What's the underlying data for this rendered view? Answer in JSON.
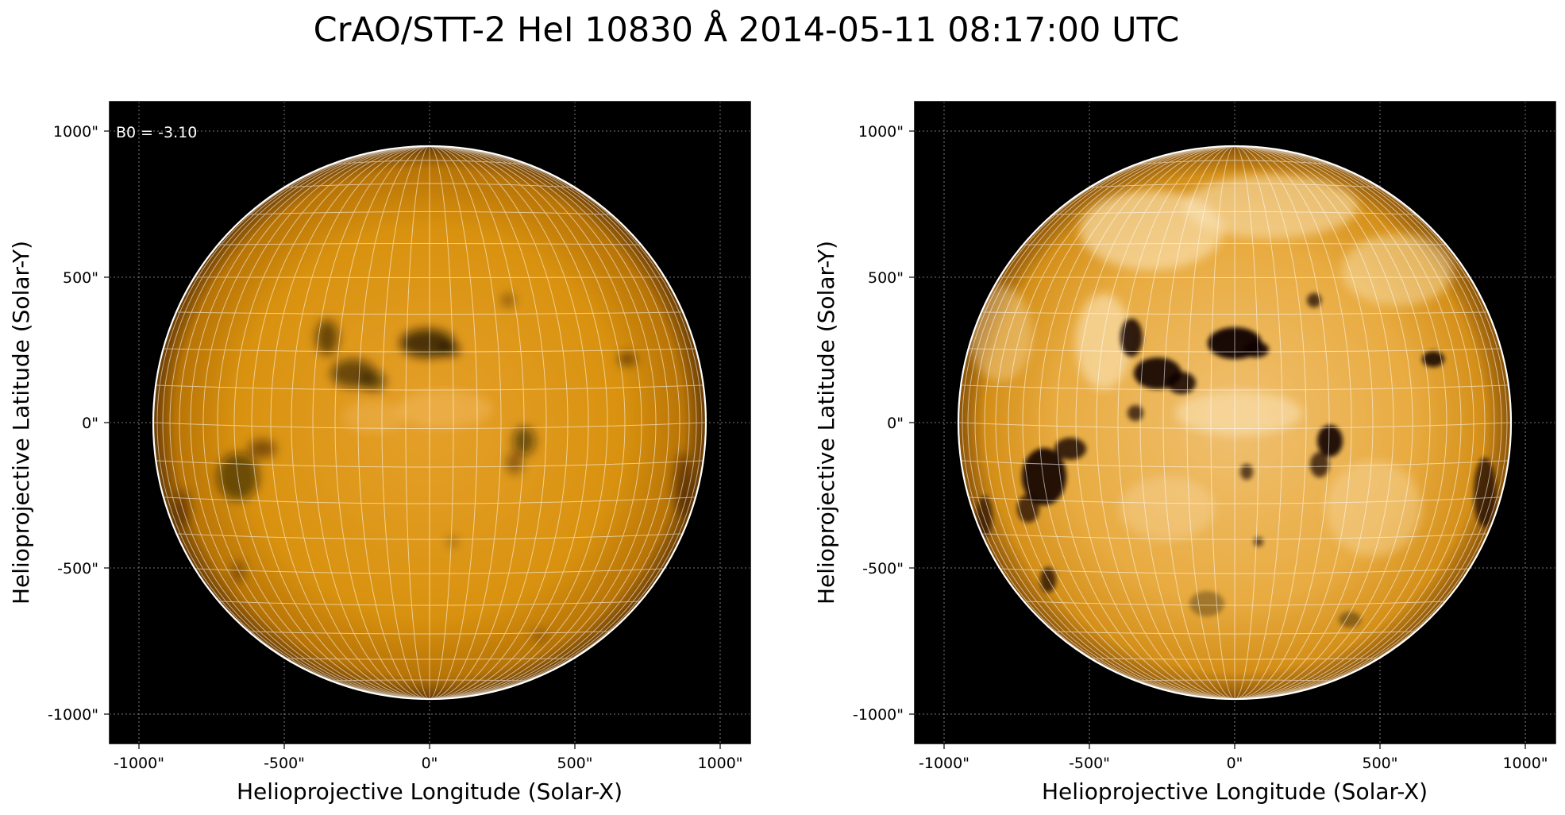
{
  "title": "CrAO/STT-2 HeI 10830 Å 2014-05-11 08:17:00 UTC",
  "colors": {
    "background": "#000000",
    "disk_base": "#d68f10",
    "disk_center": "#e7a12a",
    "limb": "#5a3404",
    "grid": "#ffffff",
    "limb_circle": "#ffffff"
  },
  "panels": [
    {
      "xlabel": "Helioprojective Longitude (Solar-X)",
      "ylabel": "Helioprojective Latitude (Solar-Y)",
      "xticks": [
        "-1000\"",
        "-500\"",
        "0\"",
        "500\"",
        "1000\""
      ],
      "yticks": [
        "1000\"",
        "500\"",
        "0\"",
        "-500\"",
        "-1000\""
      ],
      "annotation": "B0 = -3.10",
      "contrast": "normal"
    },
    {
      "xlabel": "Helioprojective Longitude (Solar-X)",
      "ylabel": "Helioprojective Latitude (Solar-Y)",
      "xticks": [
        "-1000\"",
        "-500\"",
        "0\"",
        "500\"",
        "1000\""
      ],
      "yticks": [
        "1000\"",
        "500\"",
        "0\"",
        "-500\"",
        "-1000\""
      ],
      "annotation": "",
      "contrast": "enhanced"
    }
  ],
  "solar_disk": {
    "radius_arcsec": 950,
    "b0_deg": -3.1
  }
}
